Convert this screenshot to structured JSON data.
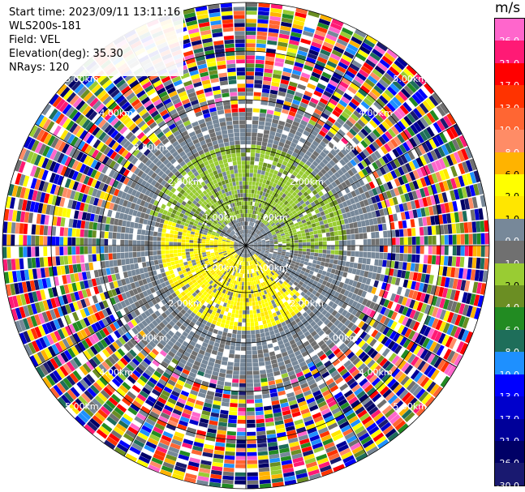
{
  "header": {
    "start_time": "Start time: 2023/09/11 13:11:16",
    "station": "WLS200s-181",
    "field": "Field: VEL",
    "elevation": "Elevation(deg): 35.30",
    "nrays": "NRays: 120"
  },
  "colorbar": {
    "unit": "m/s",
    "levels": [
      {
        "label": "26.0",
        "color": "#ff66cc"
      },
      {
        "label": "21.0",
        "color": "#ff1a75"
      },
      {
        "label": "17.0",
        "color": "#ff0000"
      },
      {
        "label": "13.0",
        "color": "#ff3300"
      },
      {
        "label": "10.0",
        "color": "#ff6633"
      },
      {
        "label": "8.0",
        "color": "#ff8c66"
      },
      {
        "label": "6.0",
        "color": "#ffb300"
      },
      {
        "label": "2.0",
        "color": "#ffff00"
      },
      {
        "label": "1.0",
        "color": "#ffe600"
      },
      {
        "label": "0.0",
        "color": "#778899"
      },
      {
        "label": "-1.0",
        "color": "#707070"
      },
      {
        "label": "-2.0",
        "color": "#99cc33"
      },
      {
        "label": "-4.0",
        "color": "#6b8e23"
      },
      {
        "label": "-6.0",
        "color": "#228b22"
      },
      {
        "label": "-8.0",
        "color": "#1e6e5a"
      },
      {
        "label": "-10.0",
        "color": "#1e90ff"
      },
      {
        "label": "-13.0",
        "color": "#0000ff"
      },
      {
        "label": "-17.0",
        "color": "#0000cc"
      },
      {
        "label": "-21.0",
        "color": "#000099"
      },
      {
        "label": "-26.0",
        "color": "#000066"
      },
      {
        "label": "-30.0",
        "color": "#191970"
      }
    ]
  },
  "chart_data": {
    "type": "heatmap",
    "subtype": "PPI radial velocity (polar)",
    "field": "VEL",
    "unit": "m/s",
    "nrays": 120,
    "elevation_deg": 35.3,
    "range_ring_labels": [
      "1.00km",
      "2.00km",
      "3.00km",
      "4.00km",
      "5.00km"
    ],
    "range_ring_labels_as_printed": [
      "1.00km",
      "2.00km",
      "2.00km",
      "3.00km",
      "4.00km",
      "5.00km"
    ],
    "spoke_angles_deg": [
      0,
      30,
      60,
      90,
      120,
      150,
      180,
      210,
      240,
      270,
      300,
      330
    ],
    "velocity_pattern": {
      "north_sector": "negative, about -2 to -4 m/s (green)",
      "south_sector": "positive, about 1 to 2 m/s (yellow)",
      "near_zero_band": "0.0 to -1.0 m/s (gray)",
      "outer_ranges": "noisy, all colors"
    }
  }
}
